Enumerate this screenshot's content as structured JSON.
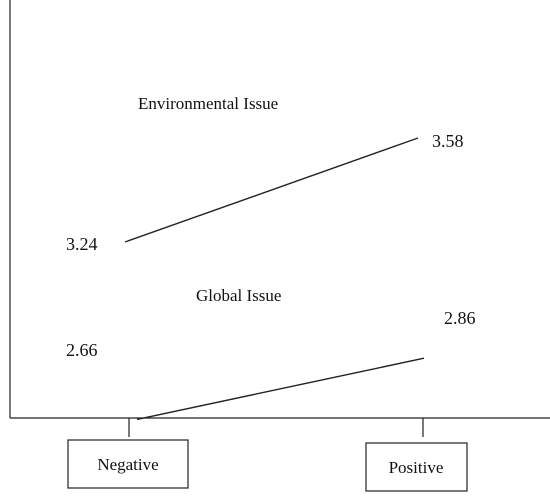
{
  "chart_data": {
    "type": "line",
    "categories": [
      "Negative",
      "Positive"
    ],
    "series": [
      {
        "name": "Environmental Issue",
        "values": [
          3.24,
          3.58
        ]
      },
      {
        "name": "Global Issue",
        "values": [
          2.66,
          2.86
        ]
      }
    ],
    "title": "",
    "xlabel": "",
    "ylabel": "",
    "grid": false,
    "legend": "none (series labels placed above each line)"
  }
}
